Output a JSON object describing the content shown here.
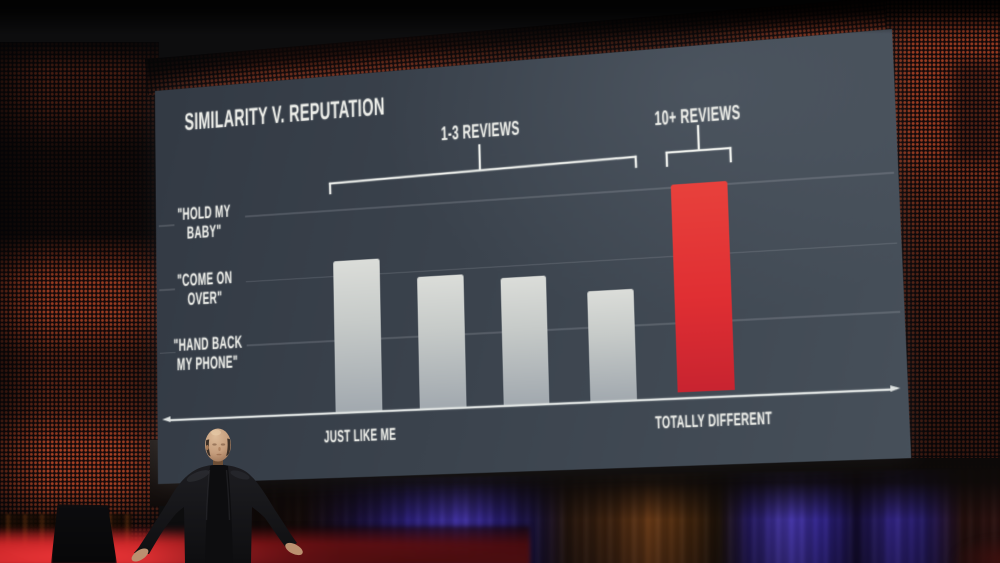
{
  "slide": {
    "title": "SIMILARITY V. REPUTATION",
    "group_labels": {
      "left": "1-3 REVIEWS",
      "right": "10+ REVIEWS"
    },
    "y_labels": [
      {
        "line1": "\"HOLD MY",
        "line2": "BABY\""
      },
      {
        "line1": "\"COME ON",
        "line2": "OVER\""
      },
      {
        "line1": "\"HAND BACK",
        "line2": "MY PHONE\""
      }
    ],
    "x_labels": {
      "left": "JUST LIKE ME",
      "right": "TOTALLY DIFFERENT"
    }
  },
  "chart_data": {
    "type": "bar",
    "title": "SIMILARITY V. REPUTATION",
    "xlabel_left": "JUST LIKE ME",
    "xlabel_right": "TOTALLY DIFFERENT",
    "y_ticks": [
      {
        "value": 3,
        "label": "\"HOLD MY BABY\""
      },
      {
        "value": 2,
        "label": "\"COME ON OVER\""
      },
      {
        "value": 1,
        "label": "\"HAND BACK MY PHONE\""
      }
    ],
    "ylim": [
      0,
      3.6
    ],
    "grid": true,
    "groups": [
      {
        "label": "1-3 REVIEWS",
        "color": "#c9cdcb",
        "values": [
          2.27,
          1.95,
          1.86,
          1.6
        ]
      },
      {
        "label": "10+ REVIEWS",
        "color": "#e02f33",
        "values": [
          3.07
        ]
      }
    ]
  },
  "scene_colors": {
    "slide_background": "#3e4751",
    "bar_gray": "#c9cdcb",
    "bar_red": "#e02f33",
    "led_wall_red": "#7e2c20",
    "curtain_purple": "#3d2da8",
    "curtain_brown": "#6e3c16",
    "floor_red": "#c02125"
  }
}
